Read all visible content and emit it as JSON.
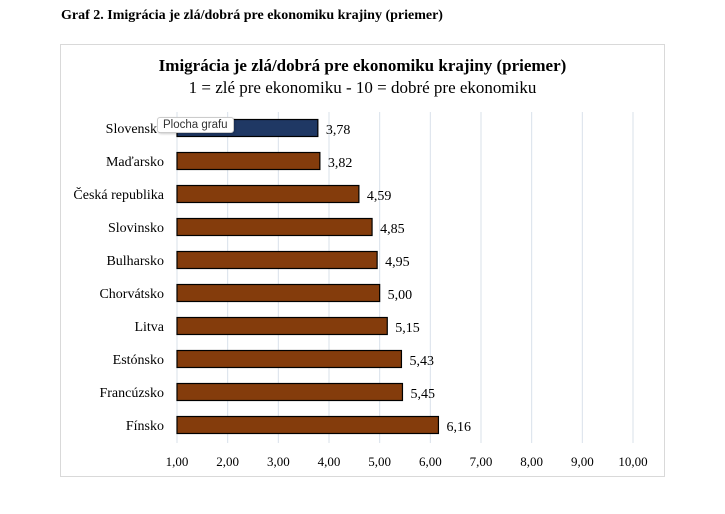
{
  "caption": "Graf 2. Imigrácia je zlá/dobrá pre ekonomiku krajiny (priemer)",
  "tooltip": "Plocha grafu",
  "chart_data": {
    "type": "bar",
    "orientation": "horizontal",
    "title": "Imigrácia je zlá/dobrá pre ekonomiku krajiny (priemer)",
    "subtitle": "1 = zlé pre ekonomiku - 10 = dobré pre ekonomiku",
    "categories": [
      "Slovensko",
      "Maďarsko",
      "Česká republika",
      "Slovinsko",
      "Bulharsko",
      "Chorvátsko",
      "Litva",
      "Estónsko",
      "Francúzsko",
      "Fínsko"
    ],
    "values": [
      3.78,
      3.82,
      4.59,
      4.85,
      4.95,
      5.0,
      5.15,
      5.43,
      5.45,
      6.16
    ],
    "data_labels": [
      "3,78",
      "3,82",
      "4,59",
      "4,85",
      "4,95",
      "5,00",
      "5,15",
      "5,43",
      "5,45",
      "6,16"
    ],
    "colors": [
      "#1f3864",
      "#843c0c",
      "#843c0c",
      "#843c0c",
      "#843c0c",
      "#843c0c",
      "#843c0c",
      "#843c0c",
      "#843c0c",
      "#843c0c"
    ],
    "xlim": [
      1,
      10
    ],
    "xticks": [
      "1,00",
      "2,00",
      "3,00",
      "4,00",
      "5,00",
      "6,00",
      "7,00",
      "8,00",
      "9,00",
      "10,00"
    ],
    "grid": true,
    "xlabel": "",
    "ylabel": ""
  }
}
